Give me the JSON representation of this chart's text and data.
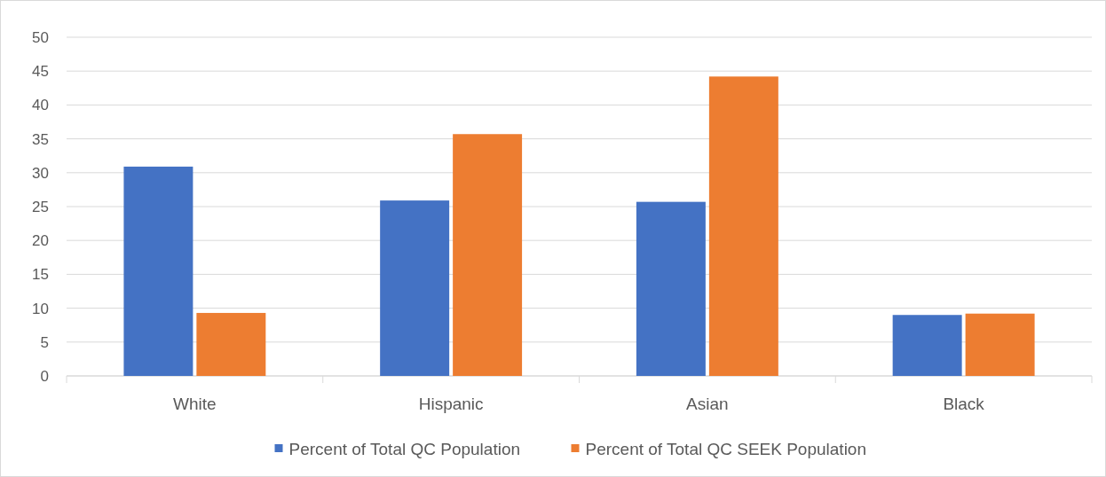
{
  "chart_data": {
    "type": "bar",
    "categories": [
      "White",
      "Hispanic",
      "Asian",
      "Black"
    ],
    "series": [
      {
        "name": "Percent of Total QC Population",
        "color": "#4472c4",
        "values": [
          30.9,
          25.9,
          25.7,
          9.0
        ]
      },
      {
        "name": "Percent of Total QC SEEK Population",
        "color": "#ed7d31",
        "values": [
          9.3,
          35.7,
          44.2,
          9.2
        ]
      }
    ],
    "ylim": [
      0,
      50
    ],
    "yticks": [
      0,
      5,
      10,
      15,
      20,
      25,
      30,
      35,
      40,
      45,
      50
    ],
    "grid": "y",
    "legend": "bottom"
  }
}
